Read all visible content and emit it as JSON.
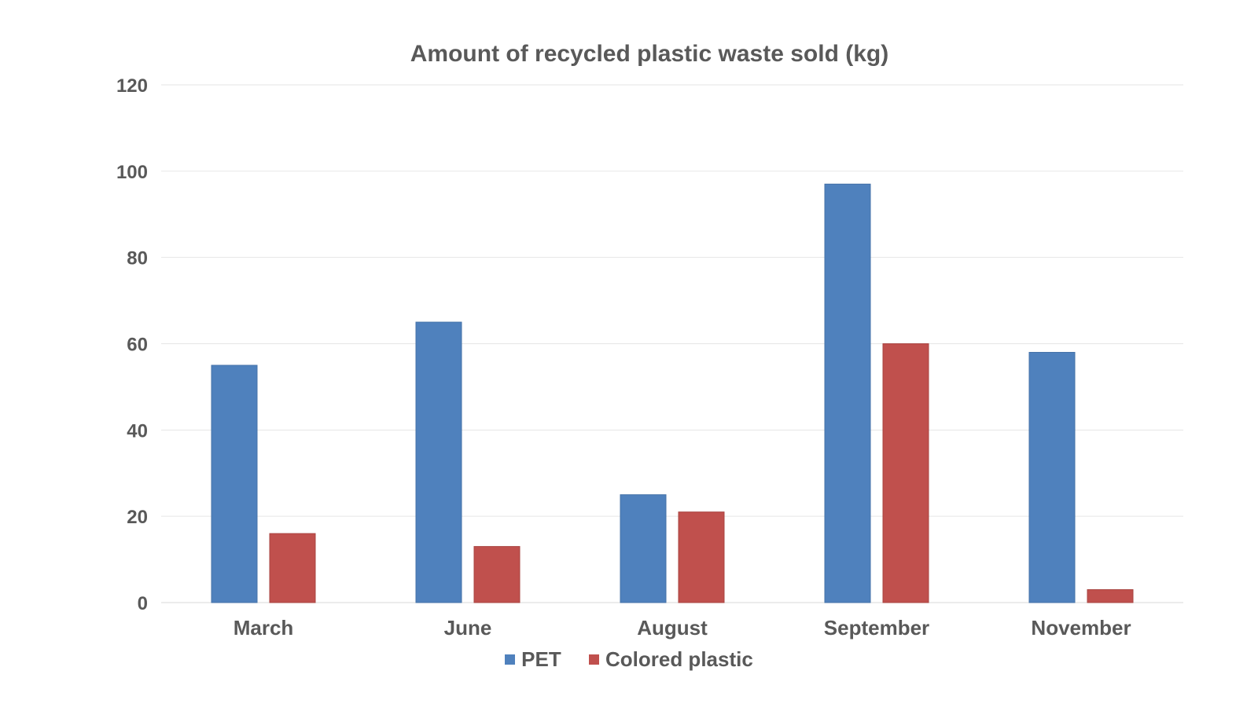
{
  "chart_data": {
    "type": "bar",
    "title": "Amount of recycled plastic waste sold (kg)",
    "categories": [
      "March",
      "June",
      "August",
      "September",
      "November"
    ],
    "series": [
      {
        "name": "PET",
        "color": "#4f81bd",
        "values": [
          55,
          65,
          25,
          97,
          58
        ]
      },
      {
        "name": "Colored plastic",
        "color": "#c0504d",
        "values": [
          16,
          13,
          21,
          60,
          3
        ]
      }
    ],
    "ylim": [
      0,
      120
    ],
    "yticks": [
      0,
      20,
      40,
      60,
      80,
      100,
      120
    ],
    "grid": true,
    "legend_position": "bottom"
  }
}
